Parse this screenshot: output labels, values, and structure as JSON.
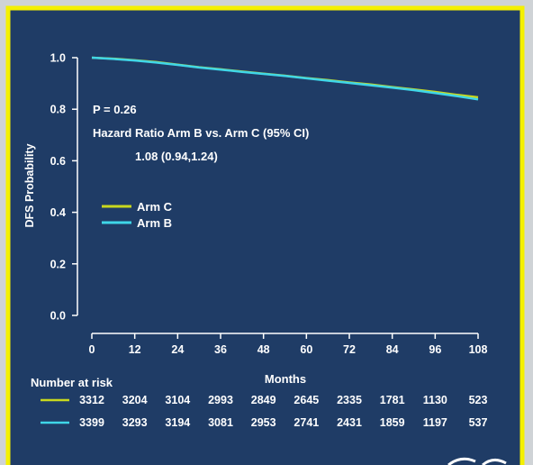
{
  "chart_data": {
    "type": "line",
    "title": "",
    "xlabel": "Months",
    "ylabel": "DFS Probability",
    "xlim": [
      0,
      108
    ],
    "ylim": [
      0,
      1.0
    ],
    "x_ticks": [
      "0",
      "12",
      "24",
      "36",
      "48",
      "60",
      "72",
      "84",
      "96",
      "108"
    ],
    "y_ticks": [
      "0.0",
      "0.2",
      "0.4",
      "0.6",
      "0.8",
      "1.0"
    ],
    "grid": false,
    "legend_position": "middle-left",
    "series": [
      {
        "name": "Arm C",
        "color": "#c8d81e",
        "x": [
          0,
          6,
          12,
          18,
          24,
          30,
          36,
          42,
          48,
          54,
          60,
          66,
          72,
          78,
          84,
          90,
          96,
          102,
          108
        ],
        "y": [
          1.0,
          0.996,
          0.99,
          0.983,
          0.973,
          0.963,
          0.955,
          0.946,
          0.938,
          0.93,
          0.921,
          0.913,
          0.904,
          0.896,
          0.886,
          0.877,
          0.867,
          0.856,
          0.846
        ]
      },
      {
        "name": "Arm B",
        "color": "#3fd6e8",
        "x": [
          0,
          6,
          12,
          18,
          24,
          30,
          36,
          42,
          48,
          54,
          60,
          66,
          72,
          78,
          84,
          90,
          96,
          102,
          108
        ],
        "y": [
          1.0,
          0.995,
          0.989,
          0.981,
          0.972,
          0.962,
          0.954,
          0.945,
          0.937,
          0.929,
          0.92,
          0.911,
          0.902,
          0.893,
          0.884,
          0.874,
          0.863,
          0.851,
          0.838
        ]
      }
    ],
    "annotations": {
      "p_value": "P = 0.26",
      "hr_label": "Hazard Ratio Arm B vs. Arm C (95% CI)",
      "hr_value": "1.08 (0.94,1.24)"
    },
    "risk_table": {
      "title": "Number at risk",
      "rows": [
        {
          "arm": "Arm C",
          "color": "#c8d81e",
          "values": [
            "3312",
            "3204",
            "3104",
            "2993",
            "2849",
            "2645",
            "2335",
            "1781",
            "1130",
            "523"
          ]
        },
        {
          "arm": "Arm B",
          "color": "#3fd6e8",
          "values": [
            "3399",
            "3293",
            "3194",
            "3081",
            "2953",
            "2741",
            "2431",
            "1859",
            "1197",
            "537"
          ]
        }
      ]
    }
  },
  "colors": {
    "background": "#1f3c66",
    "frame": "#f4f000",
    "outer": "#cfd3d6",
    "text": "#ffffff"
  },
  "corner_mark_icon": "partial-logo-glyph"
}
